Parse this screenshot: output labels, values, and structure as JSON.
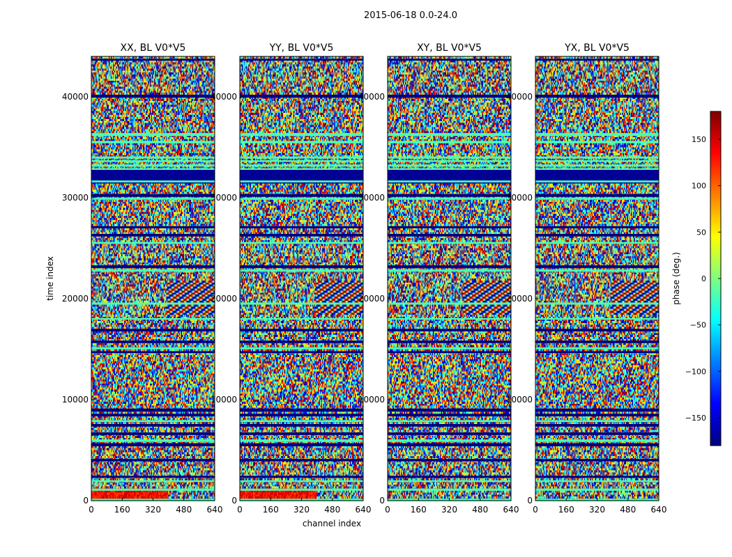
{
  "suptitle": "2015-06-18 0.0-24.0",
  "chart_data": {
    "type": "heatmap",
    "suptitle": "2015-06-18 0.0-24.0",
    "xlabel": "channel index",
    "ylabel": "time index",
    "x_range": [
      0,
      640
    ],
    "y_range": [
      0,
      44000
    ],
    "x_ticks": [
      0,
      160,
      320,
      480,
      640
    ],
    "y_ticks": [
      0,
      10000,
      20000,
      30000,
      40000
    ],
    "x_tick_labels": [
      "0",
      "160",
      "320",
      "480",
      "640"
    ],
    "y_tick_labels": [
      "0",
      "10000",
      "20000",
      "30000",
      "40000"
    ],
    "y_tick_labels_overlap": [
      "0",
      "10000",
      "20000",
      "30000",
      "40000"
    ],
    "colorbar": {
      "label": "phase (deg.)",
      "range": [
        -180,
        180
      ],
      "ticks": [
        -150,
        -100,
        -50,
        0,
        50,
        100,
        150
      ],
      "tick_labels": [
        "−150",
        "−100",
        "−50",
        "0",
        "50",
        "100",
        "150"
      ],
      "colormap": "jet",
      "colormap_stops": [
        "#00007f",
        "#0000ff",
        "#007fff",
        "#00ffff",
        "#7fff7f",
        "#ffff00",
        "#ff7f00",
        "#ff0000",
        "#7f0000"
      ]
    },
    "panels": [
      {
        "title": "XX, BL V0*V5",
        "id": "xx"
      },
      {
        "title": "YY, BL V0*V5",
        "id": "yy"
      },
      {
        "title": "XY, BL V0*V5",
        "id": "xy"
      },
      {
        "title": "YX, BL V0*V5",
        "id": "yx"
      }
    ],
    "flagged_time_ranges": [
      [
        31700,
        32900
      ]
    ],
    "fringe_region": {
      "channels": [
        400,
        640
      ],
      "time": [
        19000,
        22000
      ]
    }
  }
}
